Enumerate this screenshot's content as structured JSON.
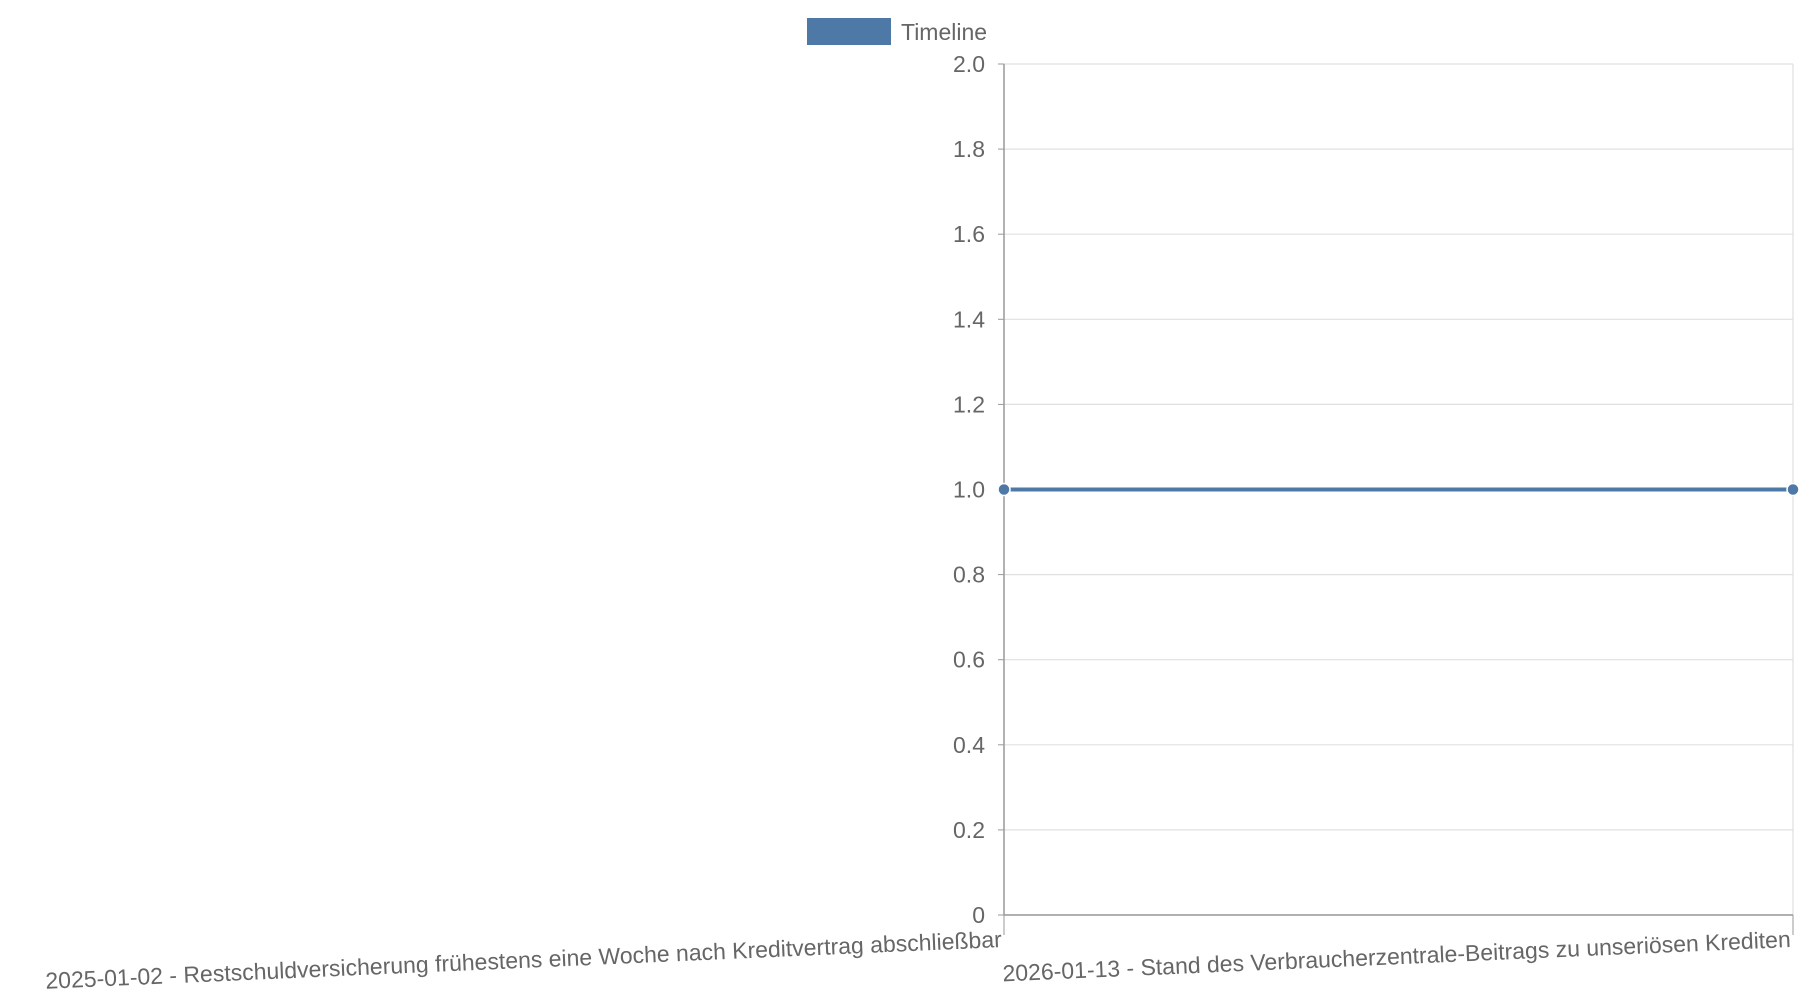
{
  "chart_data": {
    "type": "line",
    "title": "",
    "xlabel": "",
    "ylabel": "",
    "categories": [
      "2025-01-02 - Restschuldversicherung frühestens eine Woche nach Kreditvertrag abschließbar",
      "2026-01-13 - Stand des Verbraucherzentrale-Beitrags zu unseriösen Krediten"
    ],
    "series": [
      {
        "name": "Timeline",
        "values": [
          1,
          1
        ],
        "color": "#4e79a7"
      }
    ],
    "ylim": [
      0,
      2.0
    ],
    "yticks": [
      "0",
      "0.2",
      "0.4",
      "0.6",
      "0.8",
      "1.0",
      "1.2",
      "1.4",
      "1.6",
      "1.8",
      "2.0"
    ],
    "grid": true,
    "legend_position": "top"
  }
}
